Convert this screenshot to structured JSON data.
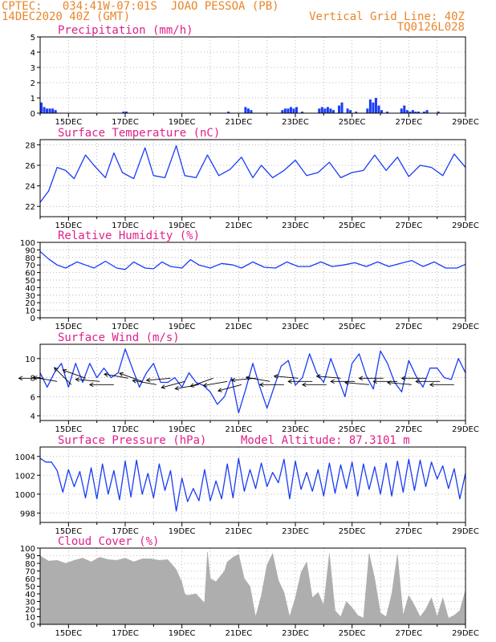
{
  "header": {
    "line1_left": "CPTEC:   034:41W-07:01S  JOAO PESSOA (PB)",
    "line2_left": "14DEC2020 40Z (GMT)",
    "line1_right": "Vertical Grid Line: 40Z",
    "line2_right": "TQ0126L028"
  },
  "x_axis": {
    "tick_labels": [
      "15DEC",
      "17DEC",
      "19DEC",
      "21DEC",
      "23DEC",
      "25DEC",
      "27DEC",
      "29DEC"
    ],
    "range_days": [
      14,
      29
    ]
  },
  "colors": {
    "series": "#1a3cf5",
    "cloud": "#a8a8a8",
    "header": "#e8862a",
    "title": "#e0208a"
  },
  "chart_data": [
    {
      "id": "precip",
      "type": "bar",
      "title": "Precipitation (mm/h)",
      "ylim": [
        0,
        5
      ],
      "yticks": [
        "0",
        "1",
        "2",
        "3",
        "4",
        "5"
      ],
      "grid": true,
      "x": [
        14.0,
        14.1,
        14.2,
        14.3,
        14.4,
        14.5,
        16.9,
        17.0,
        20.6,
        21.2,
        21.3,
        21.4,
        22.5,
        22.6,
        22.7,
        22.8,
        22.9,
        23.0,
        23.2,
        23.8,
        23.9,
        24.0,
        24.1,
        24.2,
        24.3,
        24.5,
        24.6,
        24.8,
        24.9,
        25.1,
        25.5,
        25.6,
        25.7,
        25.8,
        25.9,
        26.0,
        26.2,
        26.7,
        26.8,
        26.9,
        27.0,
        27.1,
        27.2,
        27.3,
        27.5,
        27.6,
        28.0
      ],
      "values": [
        0.7,
        0.4,
        0.3,
        0.3,
        0.3,
        0.2,
        0.1,
        0.1,
        0.1,
        0.4,
        0.3,
        0.2,
        0.2,
        0.3,
        0.3,
        0.4,
        0.3,
        0.4,
        0.1,
        0.3,
        0.4,
        0.3,
        0.4,
        0.3,
        0.2,
        0.5,
        0.7,
        0.3,
        0.2,
        0.1,
        0.3,
        0.9,
        0.7,
        1.0,
        0.5,
        0.2,
        0.1,
        0.3,
        0.5,
        0.2,
        0.1,
        0.2,
        0.1,
        0.1,
        0.1,
        0.2,
        0.1
      ]
    },
    {
      "id": "temp",
      "type": "line",
      "title": "Surface Temperature (nC)",
      "ylim": [
        21,
        28.5
      ],
      "yticks": [
        "22",
        "24",
        "26",
        "28"
      ],
      "grid": true,
      "x": [
        14.0,
        14.3,
        14.6,
        14.9,
        15.2,
        15.6,
        15.9,
        16.3,
        16.6,
        16.9,
        17.3,
        17.7,
        18.0,
        18.4,
        18.8,
        19.1,
        19.5,
        19.9,
        20.3,
        20.7,
        21.1,
        21.5,
        21.8,
        22.2,
        22.6,
        23.0,
        23.4,
        23.8,
        24.2,
        24.6,
        25.0,
        25.4,
        25.8,
        26.2,
        26.6,
        27.0,
        27.4,
        27.8,
        28.2,
        28.6,
        29.0
      ],
      "values": [
        22.4,
        23.5,
        25.8,
        25.5,
        24.7,
        27.0,
        26.0,
        24.8,
        27.2,
        25.3,
        24.7,
        27.7,
        25.0,
        24.8,
        27.9,
        25.0,
        24.8,
        27.0,
        25.0,
        25.6,
        26.8,
        24.8,
        26.0,
        24.8,
        25.5,
        26.5,
        25.0,
        25.3,
        26.3,
        24.8,
        25.3,
        25.5,
        27.0,
        25.5,
        26.8,
        24.9,
        26.0,
        25.8,
        25.0,
        27.1,
        25.8
      ]
    },
    {
      "id": "rh",
      "type": "line",
      "title": "Relative Humidity (%)",
      "ylim": [
        0,
        100
      ],
      "yticks": [
        "0",
        "10",
        "20",
        "30",
        "40",
        "50",
        "60",
        "70",
        "80",
        "90",
        "100"
      ],
      "grid": true,
      "x": [
        14.0,
        14.3,
        14.6,
        14.9,
        15.3,
        15.6,
        15.9,
        16.3,
        16.7,
        17.0,
        17.3,
        17.7,
        18.0,
        18.3,
        18.6,
        19.0,
        19.3,
        19.6,
        20.0,
        20.4,
        20.8,
        21.1,
        21.5,
        21.9,
        22.3,
        22.7,
        23.1,
        23.5,
        23.9,
        24.3,
        24.7,
        25.1,
        25.5,
        25.9,
        26.3,
        26.7,
        27.1,
        27.5,
        27.9,
        28.3,
        28.7,
        29.0
      ],
      "values": [
        88,
        78,
        70,
        66,
        74,
        70,
        66,
        75,
        66,
        64,
        74,
        66,
        65,
        74,
        68,
        66,
        77,
        70,
        66,
        72,
        70,
        66,
        74,
        67,
        66,
        74,
        68,
        68,
        74,
        68,
        70,
        73,
        68,
        74,
        68,
        72,
        76,
        68,
        74,
        66,
        66,
        71
      ]
    },
    {
      "id": "wind",
      "type": "line",
      "title": "Surface Wind (m/s)",
      "ylim": [
        3.5,
        11.5
      ],
      "yticks": [
        "4",
        "6",
        "8",
        "10"
      ],
      "grid": true,
      "x": [
        14.0,
        14.25,
        14.5,
        14.75,
        15.0,
        15.25,
        15.5,
        15.75,
        16.0,
        16.25,
        16.5,
        16.75,
        17.0,
        17.25,
        17.5,
        17.75,
        18.0,
        18.25,
        18.5,
        18.75,
        19.0,
        19.25,
        19.5,
        19.75,
        20.0,
        20.25,
        20.5,
        20.75,
        21.0,
        21.25,
        21.5,
        21.75,
        22.0,
        22.25,
        22.5,
        22.75,
        23.0,
        23.25,
        23.5,
        23.75,
        24.0,
        24.25,
        24.5,
        24.75,
        25.0,
        25.25,
        25.5,
        25.75,
        26.0,
        26.25,
        26.5,
        26.75,
        27.0,
        27.25,
        27.5,
        27.75,
        28.0,
        28.25,
        28.5,
        28.75,
        29.0
      ],
      "values": [
        8.5,
        7.0,
        8.5,
        9.5,
        7.0,
        9.5,
        7.5,
        9.5,
        8.0,
        9.0,
        8.0,
        8.5,
        11.0,
        9.0,
        7.0,
        8.5,
        9.5,
        7.5,
        7.5,
        8.0,
        7.0,
        8.5,
        7.5,
        7.2,
        6.5,
        5.2,
        6.0,
        8.0,
        4.3,
        6.8,
        9.5,
        7.0,
        4.8,
        7.0,
        9.2,
        9.8,
        7.2,
        8.0,
        10.5,
        8.5,
        7.5,
        10.0,
        8.0,
        6.0,
        9.5,
        10.5,
        8.2,
        6.8,
        10.8,
        9.5,
        7.5,
        6.5,
        9.8,
        8.2,
        7.0,
        9.0,
        9.0,
        8.0,
        7.8,
        10.0,
        8.5
      ]
    },
    {
      "id": "pressure",
      "type": "line",
      "title": "Surface Pressure (hPa)",
      "annotation": "Model Altitude: 87.3101 m",
      "ylim": [
        997,
        1005
      ],
      "yticks": [
        "998",
        "1000",
        "1002",
        "1004"
      ],
      "grid": true,
      "x": [
        14.0,
        14.2,
        14.4,
        14.6,
        14.8,
        15.0,
        15.2,
        15.4,
        15.6,
        15.8,
        16.0,
        16.2,
        16.4,
        16.6,
        16.8,
        17.0,
        17.2,
        17.4,
        17.6,
        17.8,
        18.0,
        18.2,
        18.4,
        18.6,
        18.8,
        19.0,
        19.2,
        19.4,
        19.6,
        19.8,
        20.0,
        20.2,
        20.4,
        20.6,
        20.8,
        21.0,
        21.2,
        21.4,
        21.6,
        21.8,
        22.0,
        22.2,
        22.4,
        22.6,
        22.8,
        23.0,
        23.2,
        23.4,
        23.6,
        23.8,
        24.0,
        24.2,
        24.4,
        24.6,
        24.8,
        25.0,
        25.2,
        25.4,
        25.6,
        25.8,
        26.0,
        26.2,
        26.4,
        26.6,
        26.8,
        27.0,
        27.2,
        27.4,
        27.6,
        27.8,
        28.0,
        28.2,
        28.4,
        28.6,
        28.8,
        29.0
      ],
      "values": [
        1003.8,
        1003.4,
        1003.4,
        1002.5,
        1000.2,
        1002.6,
        1000.8,
        1002.4,
        999.6,
        1002.8,
        999.5,
        1003.2,
        1000.0,
        1002.5,
        999.4,
        1003.5,
        999.7,
        1003.6,
        1000.0,
        1002.2,
        999.6,
        1003.2,
        1000.4,
        1002.5,
        998.2,
        1001.7,
        999.2,
        1000.6,
        999.3,
        1002.6,
        999.3,
        1001.4,
        999.5,
        1003.2,
        999.6,
        1003.8,
        1000.3,
        1002.6,
        1000.6,
        1003.3,
        1000.8,
        1002.3,
        1001.2,
        1003.7,
        999.5,
        1003.5,
        1000.5,
        1002.3,
        1000.3,
        1002.6,
        999.8,
        1003.3,
        1000.1,
        1003.1,
        1000.6,
        1003.4,
        999.8,
        1003.2,
        1000.5,
        1002.9,
        1000.0,
        1003.3,
        999.8,
        1003.5,
        1000.2,
        1003.7,
        1000.4,
        1003.6,
        1000.8,
        1003.4,
        1001.6,
        1003.0,
        1000.6,
        1002.7,
        999.5,
        1002.2
      ]
    },
    {
      "id": "cloud",
      "type": "area",
      "title": "Cloud Cover (%)",
      "ylim": [
        0,
        100
      ],
      "yticks": [
        "0",
        "10",
        "20",
        "30",
        "40",
        "50",
        "60",
        "70",
        "80",
        "90",
        "100"
      ],
      "grid": true,
      "x": [
        14.0,
        14.3,
        14.6,
        14.9,
        15.2,
        15.5,
        15.8,
        16.1,
        16.4,
        16.7,
        17.0,
        17.3,
        17.6,
        17.9,
        18.2,
        18.5,
        18.8,
        19.0,
        19.1,
        19.2,
        19.5,
        19.8,
        19.9,
        20.0,
        20.2,
        20.5,
        20.6,
        20.8,
        21.0,
        21.2,
        21.4,
        21.6,
        21.8,
        22.0,
        22.2,
        22.4,
        22.6,
        22.8,
        23.0,
        23.2,
        23.4,
        23.6,
        23.8,
        24.0,
        24.2,
        24.4,
        24.6,
        24.8,
        25.0,
        25.2,
        25.4,
        25.6,
        25.8,
        26.0,
        26.2,
        26.4,
        26.6,
        26.8,
        27.0,
        27.2,
        27.4,
        27.6,
        27.8,
        28.0,
        28.2,
        28.4,
        28.6,
        28.8,
        29.0
      ],
      "values": [
        90,
        83,
        84,
        80,
        84,
        87,
        82,
        88,
        85,
        84,
        87,
        82,
        86,
        86,
        84,
        85,
        72,
        55,
        40,
        38,
        40,
        28,
        95,
        60,
        56,
        70,
        82,
        88,
        92,
        60,
        50,
        10,
        38,
        78,
        93,
        58,
        42,
        10,
        35,
        68,
        82,
        35,
        42,
        25,
        93,
        18,
        10,
        30,
        22,
        12,
        8,
        93,
        60,
        15,
        10,
        40,
        92,
        12,
        38,
        25,
        10,
        20,
        35,
        10,
        35,
        8,
        12,
        18,
        45
      ]
    }
  ],
  "wind_arrows": [
    {
      "day": 14.1,
      "dir_deg": 90
    },
    {
      "day": 14.6,
      "dir_deg": 100
    },
    {
      "day": 15.1,
      "dir_deg": 135
    },
    {
      "day": 15.6,
      "dir_deg": 110
    },
    {
      "day": 16.1,
      "dir_deg": 95
    },
    {
      "day": 16.6,
      "dir_deg": 90
    },
    {
      "day": 17.1,
      "dir_deg": 100
    },
    {
      "day": 17.6,
      "dir_deg": 110
    },
    {
      "day": 18.1,
      "dir_deg": 100
    },
    {
      "day": 18.6,
      "dir_deg": 85
    },
    {
      "day": 19.1,
      "dir_deg": 75
    },
    {
      "day": 19.6,
      "dir_deg": 80
    },
    {
      "day": 20.1,
      "dir_deg": 70
    },
    {
      "day": 20.6,
      "dir_deg": 80
    },
    {
      "day": 21.1,
      "dir_deg": 75
    },
    {
      "day": 21.6,
      "dir_deg": 85
    },
    {
      "day": 22.1,
      "dir_deg": 100
    },
    {
      "day": 22.6,
      "dir_deg": 90
    },
    {
      "day": 23.1,
      "dir_deg": 95
    },
    {
      "day": 23.6,
      "dir_deg": 90
    },
    {
      "day": 24.1,
      "dir_deg": 90
    },
    {
      "day": 24.6,
      "dir_deg": 95
    },
    {
      "day": 25.1,
      "dir_deg": 90
    },
    {
      "day": 25.6,
      "dir_deg": 95
    },
    {
      "day": 26.1,
      "dir_deg": 90
    },
    {
      "day": 26.6,
      "dir_deg": 90
    },
    {
      "day": 27.1,
      "dir_deg": 95
    },
    {
      "day": 27.6,
      "dir_deg": 90
    },
    {
      "day": 28.1,
      "dir_deg": 90
    },
    {
      "day": 28.6,
      "dir_deg": 90
    }
  ]
}
